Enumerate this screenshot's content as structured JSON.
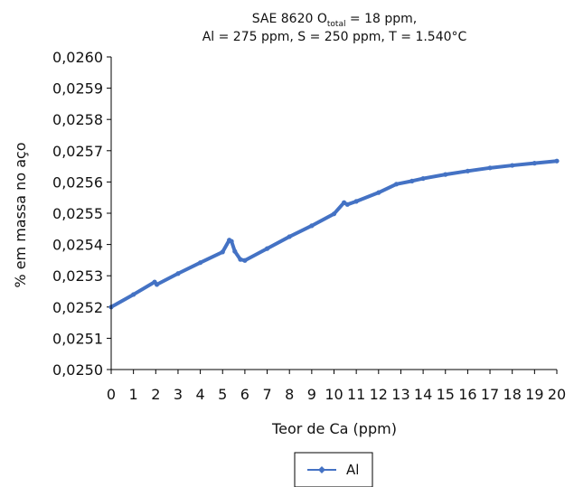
{
  "chart_data": {
    "type": "line",
    "title_line1_a": "SAE 8620 O",
    "title_line1_sub": "total",
    "title_line1_b": " = 18 ppm,",
    "title_line2": "Al = 275 ppm, S = 250 ppm, T = 1.540°C",
    "xlabel": "Teor de Ca (ppm)",
    "ylabel": "% em massa no aço",
    "xlim": [
      0,
      20
    ],
    "ylim": [
      0.025,
      0.026
    ],
    "x_ticks": [
      "0",
      "1",
      "2",
      "3",
      "4",
      "5",
      "6",
      "7",
      "8",
      "9",
      "10",
      "11",
      "12",
      "13",
      "14",
      "15",
      "16",
      "17",
      "18",
      "19",
      "20"
    ],
    "y_ticks": [
      "0,0250",
      "0,0251",
      "0,0252",
      "0,0253",
      "0,0254",
      "0,0255",
      "0,0256",
      "0,0257",
      "0,0258",
      "0,0259",
      "0,0260"
    ],
    "legend_position": "bottom",
    "series": [
      {
        "name": "Al",
        "color": "#4472C4",
        "x": [
          0,
          1,
          1.95,
          2.05,
          3,
          4,
          5,
          5.3,
          5.4,
          5.55,
          5.8,
          6,
          7,
          8,
          9,
          10,
          10.45,
          10.6,
          11,
          12,
          12.8,
          13.5,
          14,
          15,
          16,
          17,
          18,
          19,
          20
        ],
        "y": [
          0.0252,
          0.02524,
          0.02528,
          0.025272,
          0.025307,
          0.025342,
          0.025376,
          0.025414,
          0.02541,
          0.025378,
          0.025352,
          0.025349,
          0.025387,
          0.025425,
          0.02546,
          0.025498,
          0.025534,
          0.025528,
          0.025538,
          0.025566,
          0.025593,
          0.025603,
          0.025611,
          0.025624,
          0.025635,
          0.025645,
          0.025653,
          0.02566,
          0.025667
        ]
      }
    ]
  }
}
